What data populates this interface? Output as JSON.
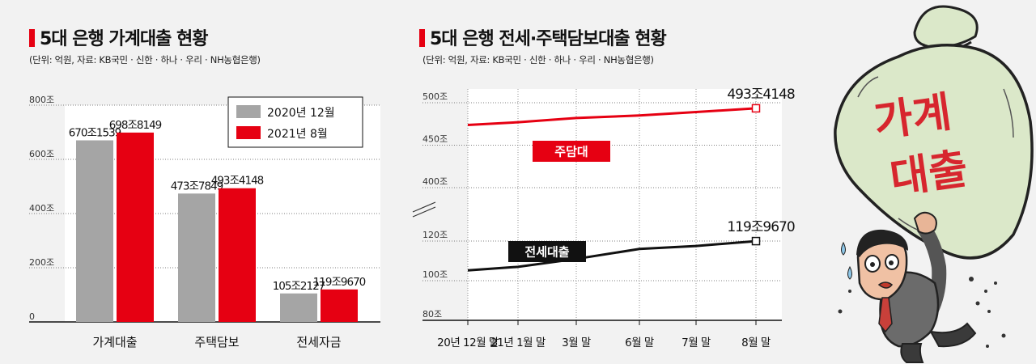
{
  "left": {
    "title": "5대 은행 가계대출 현황",
    "subtitle": "(단위: 억원, 자료: KB국민 · 신한 · 하나 · 우리 · NH농협은행)"
  },
  "right": {
    "title": "5대 은행 전세·주택담보대출 현황",
    "subtitle": "(단위: 억원, 자료: KB국민 · 신한 · 하나 · 우리 · NH농협은행)"
  },
  "illustration": {
    "sack_text_line1": "가계",
    "sack_text_line2": "대출"
  },
  "chart_data": [
    {
      "type": "bar",
      "categories": [
        "가계대출",
        "주택담보",
        "전세자금"
      ],
      "series": [
        {
          "name": "2020년 12월",
          "values": [
            670.1539,
            473.7849,
            105.2127
          ],
          "labels": [
            "670조1539",
            "473조7849",
            "105조2127"
          ],
          "color": "#a5a5a5"
        },
        {
          "name": "2021년 8월",
          "values": [
            698.8149,
            493.4148,
            119.967
          ],
          "labels": [
            "698조8149",
            "493조4148",
            "119조9670"
          ],
          "color": "#e60012"
        }
      ],
      "y_ticks": [
        "0",
        "200조",
        "400조",
        "600조",
        "800조"
      ],
      "ylim": [
        0,
        800
      ],
      "legend_position": "top-right",
      "grid": true
    },
    {
      "type": "line",
      "x": [
        "20년 12월 말",
        "21년 1월 말",
        "3월 말",
        "6월 말",
        "7월 말",
        "8월 말"
      ],
      "series": [
        {
          "name": "주담대",
          "color": "#e60012",
          "values": [
            473.7849,
            477,
            482,
            485,
            489,
            493.4148
          ]
        },
        {
          "name": "전세대출",
          "color": "#111111",
          "values": [
            105.2127,
            107,
            111,
            116,
            117.5,
            119.967
          ]
        }
      ],
      "end_labels": [
        "493조4148",
        "119조9670"
      ],
      "y_ticks_upper": [
        "400조",
        "450조",
        "500조"
      ],
      "y_ticks_lower": [
        "80조",
        "100조",
        "120조"
      ],
      "ylim_upper": [
        400,
        500
      ],
      "ylim_lower": [
        80,
        120
      ],
      "axis_break": true,
      "grid": true
    }
  ]
}
